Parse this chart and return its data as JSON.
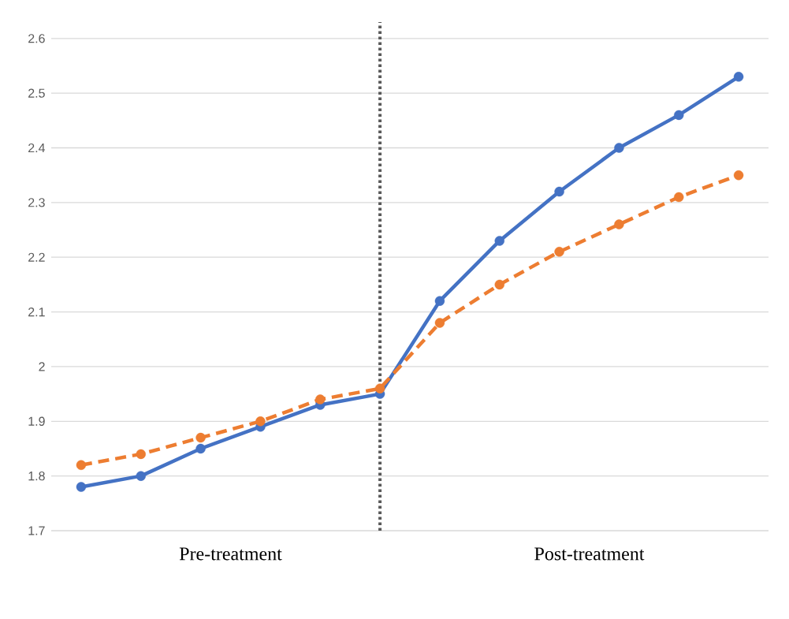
{
  "chart_data": {
    "type": "line",
    "categories": [
      null,
      null,
      null,
      null,
      null,
      null,
      null,
      null,
      null,
      null,
      null,
      null
    ],
    "ylim": [
      1.7,
      2.63
    ],
    "yticks": [
      1.7,
      1.8,
      1.9,
      2,
      2.1,
      2.2,
      2.3,
      2.4,
      2.5,
      2.6
    ],
    "tick_labels": "y",
    "grid": "y",
    "marker": "circle",
    "series": [
      {
        "color": "#4472c4",
        "line_style": "solid",
        "values": [
          1.78,
          1.8,
          1.85,
          1.89,
          1.93,
          1.95,
          2.12,
          2.23,
          2.32,
          2.4,
          2.46,
          2.53
        ]
      },
      {
        "color": "#ed7d31",
        "line_style": "dashed",
        "values": [
          1.82,
          1.84,
          1.87,
          1.9,
          1.94,
          1.96,
          2.08,
          2.15,
          2.21,
          2.26,
          2.31,
          2.35
        ]
      }
    ],
    "annotations": [
      "Pre-treatment",
      "Post-treatment"
    ]
  }
}
